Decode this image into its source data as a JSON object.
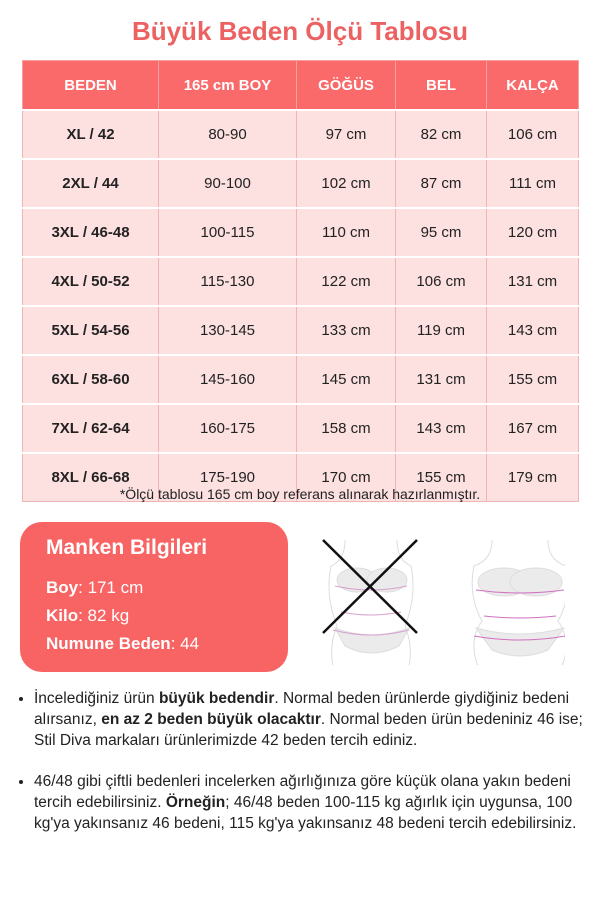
{
  "title": "Büyük Beden Ölçü Tablosu",
  "table": {
    "headers": [
      "BEDEN",
      "165 cm BOY",
      "GÖĞÜS",
      "BEL",
      "KALÇA"
    ],
    "rows": [
      [
        "XL / 42",
        "80-90",
        "97 cm",
        "82 cm",
        "106 cm"
      ],
      [
        "2XL / 44",
        "90-100",
        "102 cm",
        "87 cm",
        "111 cm"
      ],
      [
        "3XL / 46-48",
        "100-115",
        "110 cm",
        "95 cm",
        "120 cm"
      ],
      [
        "4XL / 50-52",
        "115-130",
        "122 cm",
        "106 cm",
        "131 cm"
      ],
      [
        "5XL / 54-56",
        "130-145",
        "133 cm",
        "119 cm",
        "143 cm"
      ],
      [
        "6XL / 58-60",
        "145-160",
        "145 cm",
        "131 cm",
        "155 cm"
      ],
      [
        "7XL / 62-64",
        "160-175",
        "158 cm",
        "143 cm",
        "167 cm"
      ],
      [
        "8XL / 66-68",
        "175-190",
        "170 cm",
        "155 cm",
        "179 cm"
      ]
    ]
  },
  "note": "*Ölçü tablosu 165 cm boy referans alınarak hazırlanmıştır.",
  "manken": {
    "title": "Manken Bilgileri",
    "boy_label": "Boy",
    "boy_value": ": 171 cm",
    "kilo_label": "Kilo",
    "kilo_value": ": 82 kg",
    "beden_label": "Numune Beden",
    "beden_value": ": 44"
  },
  "bullets": [
    {
      "p1": "İncelediğiniz ürün ",
      "b1": "büyük bedendir",
      "p2": ". Normal beden ürünlerde giydiğiniz bedeni alırsanız, ",
      "b2": "en az 2 beden büyük olacaktır",
      "p3": ". Normal beden ürün bedeniniz 46 ise; Stil Diva markaları ürünlerimizde 42 beden tercih ediniz."
    },
    {
      "p1": "46/48 gibi çiftli bedenleri incelerken ağırlığınıza göre küçük olana yakın bedeni tercih edebilirsiniz. ",
      "b1": "Örneğin",
      "p2": "; 46/48 beden 100-115 kg ağırlık için uygunsa, 100 kg'ya yakınsanız 46 bedeni, 115 kg'ya yakınsanız 48 bedeni tercih edebilirsiniz.",
      "b2": "",
      "p3": ""
    }
  ],
  "colors": {
    "accent": "#fa6a6a",
    "row": "#fde0e0",
    "title": "#ec6262"
  }
}
